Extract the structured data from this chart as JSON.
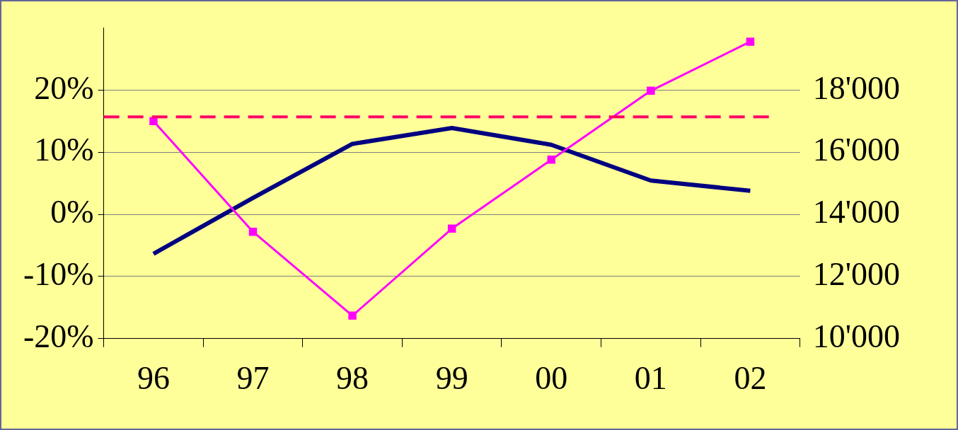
{
  "chart_data": {
    "type": "line",
    "categories": [
      "96",
      "97",
      "98",
      "99",
      "00",
      "01",
      "02"
    ],
    "series": [
      {
        "type": "line",
        "color": "#ff00ff",
        "marker": "square",
        "values": [
          15,
          -2.8,
          -16.3,
          -2.3,
          8.8,
          19.9,
          27.8
        ]
      },
      {
        "type": "line",
        "color": "#000080",
        "marker": "none",
        "axis": "y2",
        "values": [
          12730,
          14530,
          16270,
          16780,
          16240,
          15090,
          14760
        ]
      }
    ],
    "ylim": [
      -20,
      30
    ],
    "yticks": [
      {
        "value": -20,
        "label": "-20%"
      },
      {
        "value": -10,
        "label": "-10%"
      },
      {
        "value": 0,
        "label": "0%"
      },
      {
        "value": 10,
        "label": "10%"
      },
      {
        "value": 20,
        "label": "20%"
      }
    ],
    "y2lim": [
      10000,
      20000
    ],
    "y2ticks": [
      {
        "value": 10000,
        "label": "10'000"
      },
      {
        "value": 12000,
        "label": "12'000"
      },
      {
        "value": 14000,
        "label": "14'000"
      },
      {
        "value": 16000,
        "label": "16'000"
      },
      {
        "value": 18000,
        "label": "18'000"
      }
    ],
    "ref_lines": [
      {
        "axis": "y",
        "value": 15.7,
        "color": "#ff0066",
        "line_style": "dashed"
      }
    ],
    "grid": "y",
    "legend": false
  }
}
